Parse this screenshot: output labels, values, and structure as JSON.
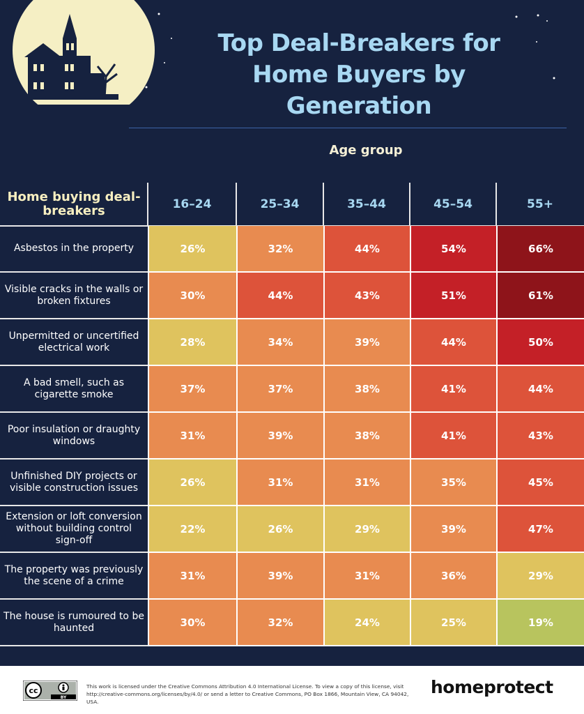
{
  "title": "Top Deal-Breakers for Home Buyers by Generation",
  "age_group_label": "Age group",
  "row_header": "Home buying deal-breakers",
  "chart_data": {
    "type": "table",
    "title": "Top Deal-Breakers for Home Buyers by Generation",
    "column_group_label": "Age group",
    "columns": [
      "16–24",
      "25–34",
      "35–44",
      "45–54",
      "55+"
    ],
    "rows": [
      {
        "label": "Asbestos in the property",
        "values": [
          26,
          32,
          44,
          54,
          66
        ]
      },
      {
        "label": "Visible cracks in the walls or broken fixtures",
        "values": [
          30,
          44,
          43,
          51,
          61
        ]
      },
      {
        "label": "Unpermitted or uncertified electrical work",
        "values": [
          28,
          34,
          39,
          44,
          50
        ]
      },
      {
        "label": "A bad smell, such as cigarette smoke",
        "values": [
          37,
          37,
          38,
          41,
          44
        ]
      },
      {
        "label": "Poor insulation or draughty windows",
        "values": [
          31,
          39,
          38,
          41,
          43
        ]
      },
      {
        "label": "Unfinished DIY projects or visible construction issues",
        "values": [
          26,
          31,
          31,
          35,
          45
        ]
      },
      {
        "label": "Extension or loft conversion without building control sign-off",
        "values": [
          22,
          26,
          29,
          39,
          47
        ]
      },
      {
        "label": "The property was previously the scene of a crime",
        "values": [
          31,
          39,
          31,
          36,
          29
        ]
      },
      {
        "label": "The house is rumoured to be haunted",
        "values": [
          30,
          32,
          24,
          25,
          19
        ]
      }
    ],
    "value_suffix": "%"
  },
  "colors": {
    "background": "#16223f",
    "title": "#a8d8f2",
    "scale": [
      "#b8c45e",
      "#dfc35e",
      "#e88b50",
      "#dd533a",
      "#c42027",
      "#8e141a"
    ]
  },
  "footer": {
    "license_text": "This work is licensed under the Creative Commons Attribution 4.0 International License. To view a copy of this license, visit http://creative-commons.org/licenses/by/4.0/ or send a letter to Creative Commons, PO Box 1866, Mountain View, CA 94042, USA.",
    "brand": "homeprotect",
    "cc_badge": "cc",
    "by_badge": "BY"
  }
}
